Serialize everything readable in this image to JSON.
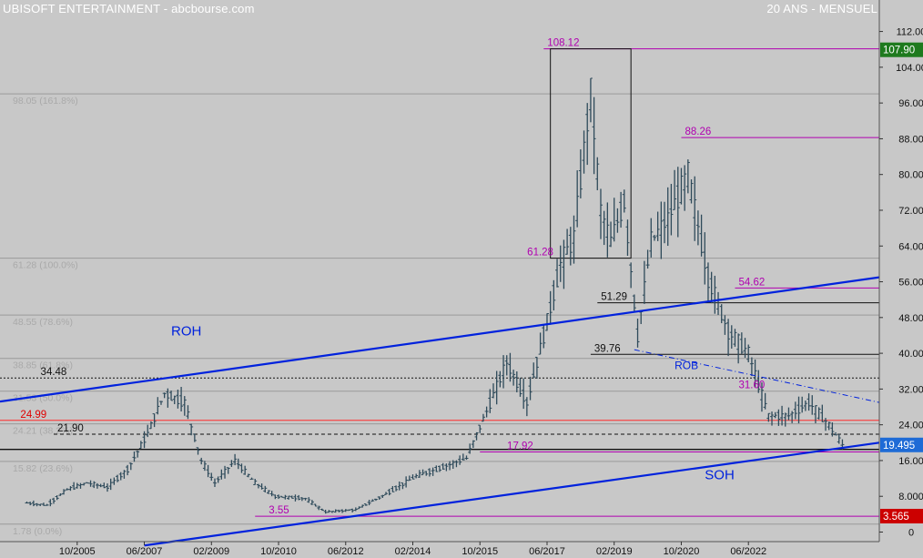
{
  "header": {
    "title": "UBISOFT ENTERTAINMENT - abcbourse.com",
    "period": "20 ANS - MENSUEL"
  },
  "colors": {
    "background": "#c8c8c8",
    "candles": "#2e4a5a",
    "trendline": "#0022dd",
    "magenta": "#b000b0",
    "red_line": "#ff2a2a",
    "last_price_bg": "#1e6bd6",
    "high_bg": "#1e7a1e",
    "low_bg": "#cc0000",
    "fib_text": "#a9a9a9"
  },
  "chart_data": {
    "type": "candlestick",
    "frequency": "monthly",
    "x_tick_labels": [
      "10/2005",
      "06/2007",
      "02/2009",
      "10/2010",
      "06/2012",
      "02/2014",
      "10/2015",
      "06/2017",
      "02/2019",
      "10/2020",
      "06/2022"
    ],
    "y_tick_labels": [
      "112.00",
      "104.00",
      "96.00",
      "88.00",
      "80.00",
      "72.00",
      "64.00",
      "56.00",
      "48.00",
      "40.00",
      "32.00",
      "24.00",
      "16.00",
      "8.000",
      "0"
    ],
    "ylim": [
      0,
      115
    ],
    "price_anchors": [
      {
        "date": "2004-07",
        "price": 6.5
      },
      {
        "date": "2005-01",
        "price": 6.0
      },
      {
        "date": "2005-07",
        "price": 9.5
      },
      {
        "date": "2006-01",
        "price": 11.0
      },
      {
        "date": "2006-07",
        "price": 10.0
      },
      {
        "date": "2007-01",
        "price": 14.0
      },
      {
        "date": "2007-07",
        "price": 22.0
      },
      {
        "date": "2007-12",
        "price": 31.0
      },
      {
        "date": "2008-06",
        "price": 29.0
      },
      {
        "date": "2008-11",
        "price": 16.0
      },
      {
        "date": "2009-03",
        "price": 11.0
      },
      {
        "date": "2009-09",
        "price": 16.0
      },
      {
        "date": "2010-03",
        "price": 11.0
      },
      {
        "date": "2010-09",
        "price": 8.0
      },
      {
        "date": "2011-06",
        "price": 7.5
      },
      {
        "date": "2011-12",
        "price": 4.5
      },
      {
        "date": "2012-09",
        "price": 5.0
      },
      {
        "date": "2013-06",
        "price": 8.5
      },
      {
        "date": "2014-03",
        "price": 12.5
      },
      {
        "date": "2014-09",
        "price": 14.0
      },
      {
        "date": "2015-06",
        "price": 16.5
      },
      {
        "date": "2015-12",
        "price": 27.0
      },
      {
        "date": "2016-06",
        "price": 38.0
      },
      {
        "date": "2016-12",
        "price": 29.0
      },
      {
        "date": "2017-06",
        "price": 47.0
      },
      {
        "date": "2017-10",
        "price": 60.0
      },
      {
        "date": "2018-02",
        "price": 66.0
      },
      {
        "date": "2018-07",
        "price": 98.0
      },
      {
        "date": "2018-10",
        "price": 72.0
      },
      {
        "date": "2019-01",
        "price": 65.0
      },
      {
        "date": "2019-05",
        "price": 74.0
      },
      {
        "date": "2019-09",
        "price": 44.0
      },
      {
        "date": "2020-01",
        "price": 65.0
      },
      {
        "date": "2020-06",
        "price": 70.0
      },
      {
        "date": "2020-12",
        "price": 80.0
      },
      {
        "date": "2021-06",
        "price": 57.0
      },
      {
        "date": "2021-12",
        "price": 45.0
      },
      {
        "date": "2022-06",
        "price": 40.0
      },
      {
        "date": "2022-12",
        "price": 26.0
      },
      {
        "date": "2023-06",
        "price": 26.0
      },
      {
        "date": "2023-12",
        "price": 29.0
      },
      {
        "date": "2024-06",
        "price": 24.0
      },
      {
        "date": "2024-10",
        "price": 19.5
      }
    ],
    "price_badges": [
      {
        "label": "107.90",
        "price": 107.9,
        "kind": "high"
      },
      {
        "label": "19.495",
        "price": 19.495,
        "kind": "last"
      },
      {
        "label": "3.565",
        "price": 3.565,
        "kind": "low"
      }
    ],
    "fib_levels": [
      {
        "label": "98.05  (161.8%)",
        "price": 98.05
      },
      {
        "label": "61.28  (100.0%)",
        "price": 61.28
      },
      {
        "label": "48.55  (78.6%)",
        "price": 48.55
      },
      {
        "label": "38.85  (61.8%)",
        "price": 38.85
      },
      {
        "label": "31.53  (50.0%)",
        "price": 31.53
      },
      {
        "label": "24.21  (38.2%)",
        "price": 24.21
      },
      {
        "label": "15.82  (23.6%)",
        "price": 15.82
      },
      {
        "label": "1.78  (0.0%)",
        "price": 1.78
      }
    ],
    "levels": [
      {
        "label": "108.12",
        "price": 108.12,
        "color": "magenta",
        "style": "solid",
        "from": "2017-05",
        "to": "end",
        "label_at": "2017-05"
      },
      {
        "label": "88.26",
        "price": 88.26,
        "color": "magenta",
        "style": "solid",
        "from": "2020-10",
        "to": "end",
        "label_at": "2020-10"
      },
      {
        "label": "61.28",
        "price": 61.28,
        "color": "magenta_text",
        "style": "none",
        "label_at": "2016-11"
      },
      {
        "label": "54.62",
        "price": 54.62,
        "color": "magenta",
        "style": "solid",
        "from": "2022-02",
        "to": "end",
        "label_at": "2022-02"
      },
      {
        "label": "51.29",
        "price": 51.29,
        "color": "black",
        "style": "solid",
        "from": "2018-09",
        "to": "end",
        "label_at": "2018-09"
      },
      {
        "label": "39.76",
        "price": 39.76,
        "color": "black",
        "style": "solid",
        "from": "2018-07",
        "to": "end",
        "label_at": "2018-07"
      },
      {
        "label": "34.48",
        "price": 34.48,
        "color": "black",
        "style": "dotted",
        "from": "start",
        "to": "end",
        "label_at": "2004-10"
      },
      {
        "label": "31.60",
        "price": 31.6,
        "color": "magenta_text",
        "style": "none",
        "label_at": "2022-02"
      },
      {
        "label": "24.99",
        "price": 24.99,
        "color": "red",
        "style": "solid",
        "from": "start",
        "to": "end",
        "label_at": "2004-04"
      },
      {
        "label": "21.90",
        "price": 21.9,
        "color": "black",
        "style": "dashed",
        "from": "2005-03",
        "to": "end",
        "label_at": "2005-03"
      },
      {
        "label": "17.92",
        "price": 17.92,
        "color": "magenta",
        "style": "solid",
        "from": "2015-10",
        "to": "end",
        "label_at": "2016-05"
      },
      {
        "label": "3.55",
        "price": 3.55,
        "color": "magenta",
        "style": "solid",
        "from": "2010-03",
        "to": "end",
        "label_at": "2010-06"
      }
    ],
    "support_lines": [
      {
        "price": 18.5,
        "from": "start",
        "to": "end",
        "color": "black"
      }
    ],
    "trendlines": [
      {
        "name": "ROH",
        "from": {
          "date": "2003-11",
          "price": 29.2
        },
        "to": {
          "date": "2025-09",
          "price": 57.0
        },
        "label_at": {
          "date": "2008-02",
          "price": 44.0
        },
        "color": "blue",
        "style": "solid"
      },
      {
        "name": "SOH",
        "from": {
          "date": "2007-06",
          "price": -3.0
        },
        "to": {
          "date": "2025-09",
          "price": 20.0
        },
        "label_at": {
          "date": "2021-05",
          "price": 11.8
        },
        "color": "blue",
        "style": "solid"
      },
      {
        "name": "ROB",
        "from": {
          "date": "2019-08",
          "price": 40.8
        },
        "to": {
          "date": "2025-09",
          "price": 29.0
        },
        "label_at": {
          "date": "2020-08",
          "price": 36.5
        },
        "color": "blue",
        "style": "dashdot"
      }
    ],
    "boxes": [
      {
        "from": "2017-07",
        "to": "2019-07",
        "top": 108.12,
        "bottom": 61.28
      }
    ]
  }
}
